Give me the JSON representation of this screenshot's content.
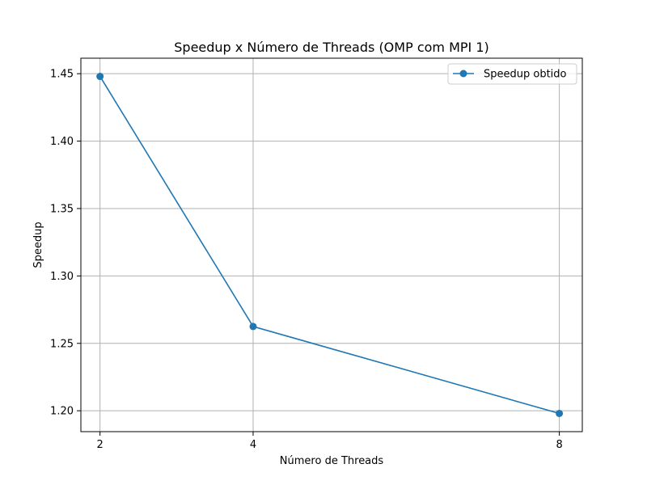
{
  "chart_data": {
    "type": "line",
    "title": "Speedup x Número de Threads (OMP com MPI 1)",
    "xlabel": "Número de Threads",
    "ylabel": "Speedup",
    "x": [
      2,
      4,
      8
    ],
    "x_ticks": [
      "2",
      "4",
      "8"
    ],
    "y_ticks": [
      "1.20",
      "1.25",
      "1.30",
      "1.35",
      "1.40",
      "1.45"
    ],
    "y_tick_values": [
      1.2,
      1.25,
      1.3,
      1.35,
      1.4,
      1.45
    ],
    "xlim": [
      1.75,
      8.3
    ],
    "ylim": [
      1.1845,
      1.4615
    ],
    "grid": true,
    "legend_position": "top-right",
    "series": [
      {
        "name": "Speedup obtido",
        "color": "#1f77b4",
        "marker": "circle",
        "values": [
          1.448,
          1.2625,
          1.198
        ]
      }
    ]
  }
}
